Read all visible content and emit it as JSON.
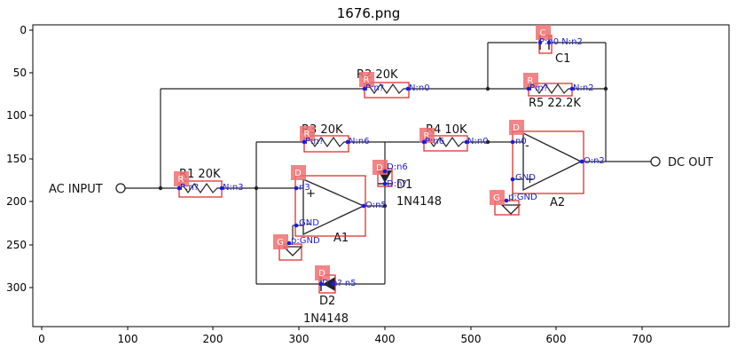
{
  "figure": {
    "title": "1676.png"
  },
  "axes": {
    "x_ticks": [
      "0",
      "100",
      "200",
      "300",
      "400",
      "500",
      "600",
      "700"
    ],
    "y_ticks": [
      "0",
      "50",
      "100",
      "150",
      "200",
      "250",
      "300"
    ]
  },
  "circuit": {
    "terminals": {
      "input": "AC INPUT",
      "output": "DC OUT"
    },
    "labels": {
      "r1": "R1  20K",
      "r2": "R2  20K",
      "r3": "R3  20K",
      "r4": "R4  10K",
      "r5": "R5 22.2K",
      "c1": "C1",
      "d1": "D1",
      "d1_part": "1N4148",
      "d2": "D2",
      "d2_part": "1N4148",
      "a1": "A1",
      "a2": "A2"
    }
  },
  "detections": {
    "tags": {
      "r1": "R",
      "r2": "R",
      "r3": "R",
      "r4": "R",
      "r5": "R",
      "c1": "C",
      "d1": "D",
      "d2": "D",
      "a1": "D",
      "a2": "D",
      "g1": "G",
      "g2": "G"
    },
    "annotations": {
      "r1_p": "P:n?",
      "r1_n": "N:n3",
      "r2_p": "P:n?",
      "r2_n": "N:n0",
      "r3_p": "P:n?",
      "r3_n": "N:n6",
      "r4_p": "P:n6",
      "r4_n": "N:n0",
      "r5_p": "P:n?",
      "r5_n": "N:n2",
      "c1": "P:n0 N:n2",
      "d1_top": "D:n6",
      "d1_bot": "D:n?",
      "d2": "D:n? n5",
      "a1_in": "n3",
      "a1_gnd": "GND",
      "a1_out": "O:n5",
      "a2_in": "n0",
      "a2_gnd": "GND",
      "a2_out": "O:n2",
      "g1": "p:GND",
      "g2": "p:GND"
    }
  }
}
